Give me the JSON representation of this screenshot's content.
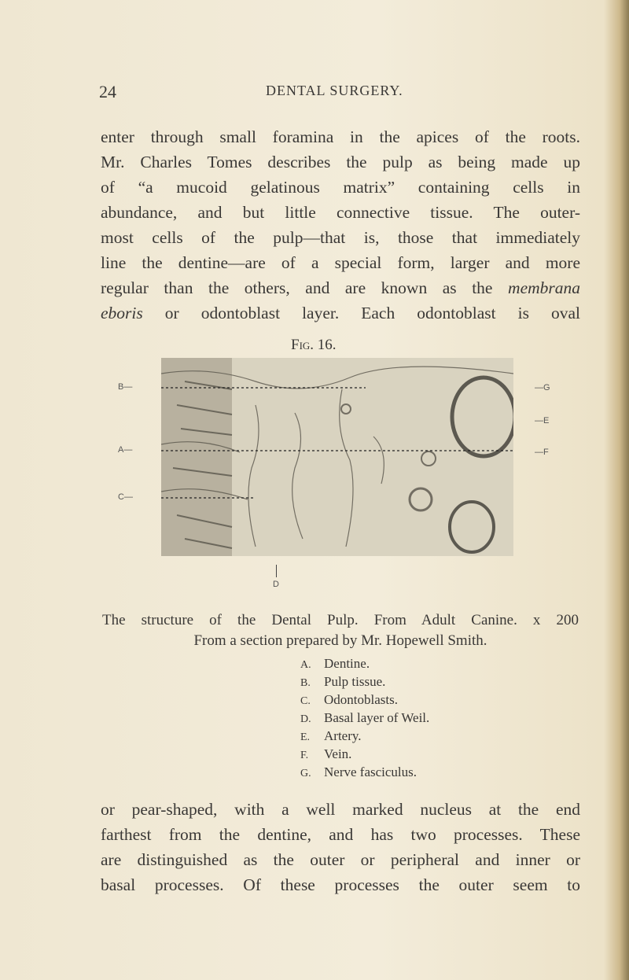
{
  "header": {
    "page_number": "24",
    "title": "DENTAL SURGERY."
  },
  "paragraph_1": {
    "lines": [
      "enter through small foramina in the apices of the roots.",
      "Mr. Charles Tomes describes the pulp as being made up",
      "of “a mucoid gelatinous matrix” containing cells in",
      "abundance, and but little connective tissue. The outer-",
      "most cells of the pulp—that is, those that immediately",
      "line the dentine—are of a special form, larger and more",
      {
        "text": "regular than the others, and are known as the",
        "italic": "membrana"
      },
      {
        "italic": "eboris",
        "text": "or odontoblast layer. Each odontoblast is oval"
      }
    ]
  },
  "figure": {
    "label": "Fig. 16.",
    "left_labels": [
      "B—",
      "A—",
      "C—"
    ],
    "right_labels": [
      "—G",
      "—E",
      "—F"
    ],
    "bottom_label": "D",
    "caption": [
      "The structure of the Dental Pulp. From Adult Canine. x 200",
      "From a section prepared by Mr. Hopewell Smith."
    ],
    "legend": [
      {
        "key": "A.",
        "text": "Dentine."
      },
      {
        "key": "B.",
        "text": "Pulp tissue."
      },
      {
        "key": "C.",
        "text": "Odontoblasts."
      },
      {
        "key": "D.",
        "text": "Basal layer of Weil."
      },
      {
        "key": "E.",
        "text": "Artery."
      },
      {
        "key": "F.",
        "text": "Vein."
      },
      {
        "key": "G.",
        "text": "Nerve fasciculus."
      }
    ]
  },
  "paragraph_2": {
    "lines": [
      "or pear-shaped, with a well marked nucleus at the end",
      "farthest from the dentine, and has two processes. These",
      "are distinguished as the outer or peripheral and inner or",
      "basal processes. Of these processes the outer seem to"
    ]
  }
}
